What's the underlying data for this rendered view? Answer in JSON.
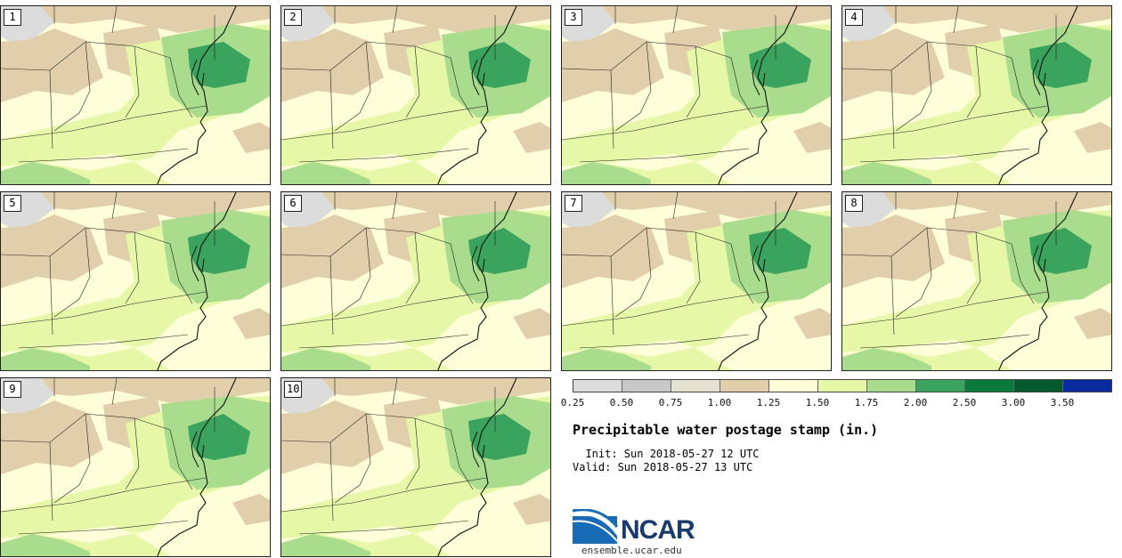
{
  "stamps": [
    {
      "label": "1"
    },
    {
      "label": "2"
    },
    {
      "label": "3"
    },
    {
      "label": "4"
    },
    {
      "label": "5"
    },
    {
      "label": "6"
    },
    {
      "label": "7"
    },
    {
      "label": "8"
    },
    {
      "label": "9"
    },
    {
      "label": "10"
    }
  ],
  "legend": {
    "colors": [
      "#dcdcdc",
      "#c8c8c8",
      "#e6e2d2",
      "#e0cfaa",
      "#fefed8",
      "#e6f7a8",
      "#a9dc8c",
      "#3aa35e",
      "#0a7a3a",
      "#045a2a",
      "#0a2aa0"
    ],
    "ticks": [
      "0.25",
      "0.50",
      "0.75",
      "1.00",
      "1.25",
      "1.50",
      "1.75",
      "2.00",
      "2.50",
      "3.00",
      "3.50"
    ]
  },
  "title": "Precipitable water postage stamp (in.)",
  "init": "Init: Sun 2018-05-27 12 UTC",
  "valid": "Valid: Sun 2018-05-27 13 UTC",
  "logo_text": "NCAR",
  "url": "ensemble.ucar.edu"
}
